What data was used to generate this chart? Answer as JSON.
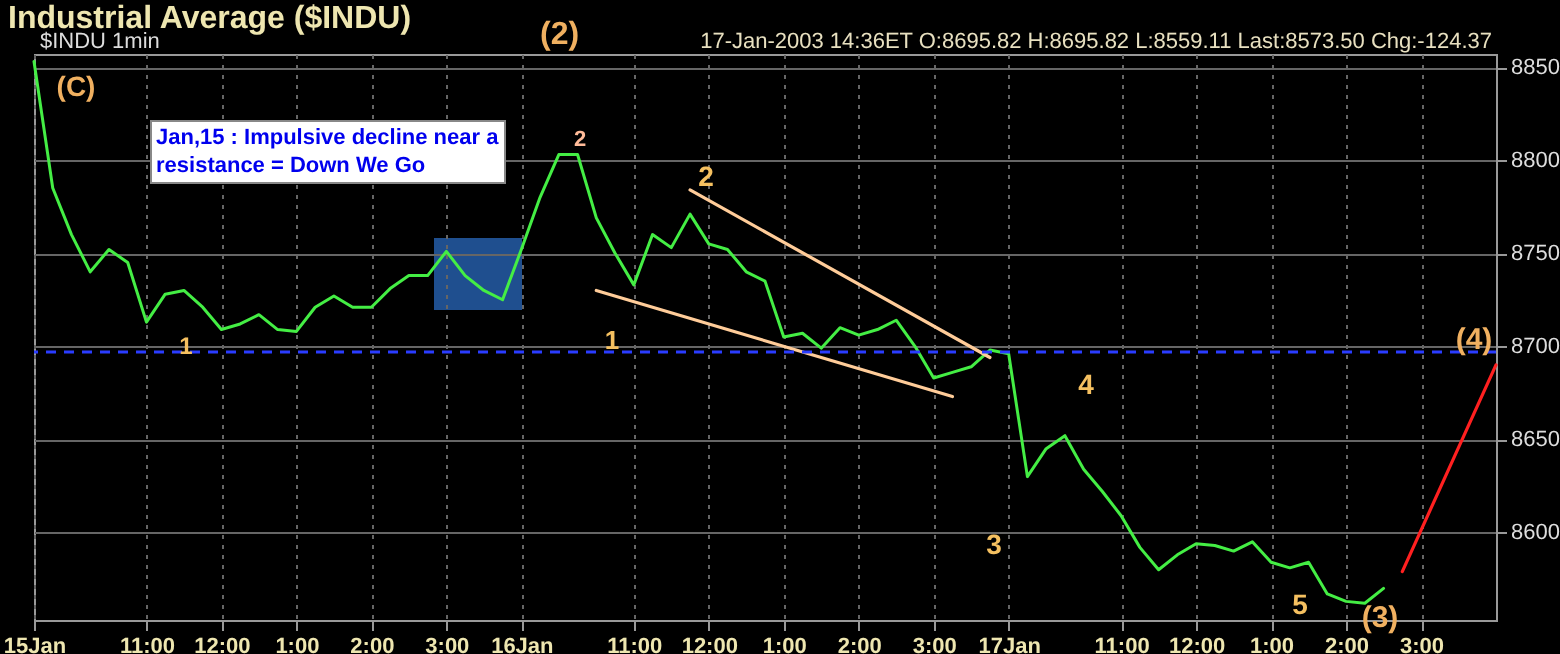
{
  "chart_data": {
    "type": "line",
    "title": "Industrial Average ($INDU)",
    "subtitle": "$INDU 1min",
    "annotations": [
      "17-Jan-2003 14:36ET O:8695.82 H:8695.82 L:8559.11 Last:8573.50 Chg:-124.37",
      "(2)",
      "Jan,15 : Impulsive decline near a resistance = Down We Go",
      "(C)",
      "1",
      "2",
      "1",
      "2",
      "3",
      "4",
      "5",
      "(3)",
      "(4)"
    ],
    "categories": [
      "15Jan",
      null,
      null,
      null,
      null,
      null,
      "11:00",
      null,
      null,
      null,
      "12:00",
      null,
      null,
      null,
      "1:00",
      null,
      null,
      null,
      "2:00",
      null,
      null,
      null,
      "3:00",
      null,
      null,
      null,
      "16Jan",
      null,
      null,
      null,
      null,
      null,
      "11:00",
      null,
      null,
      null,
      "12:00",
      null,
      null,
      null,
      "1:00",
      null,
      null,
      null,
      "2:00",
      null,
      null,
      null,
      "3:00",
      null,
      null,
      null,
      "17Jan",
      null,
      null,
      null,
      null,
      null,
      "11:00",
      null,
      null,
      null,
      "12:00",
      null,
      null,
      null,
      "1:00",
      null,
      null,
      null,
      "2:00",
      null,
      null,
      null,
      "3:00",
      null,
      null,
      null,
      null
    ],
    "ylim": [
      8553,
      8857
    ],
    "yticks": [
      8600,
      8650,
      8700,
      8750,
      8800,
      8850
    ],
    "grid": true,
    "marker": "none",
    "ref_lines": [
      {
        "axis": "y",
        "value": 8697,
        "color": "#2a3cff",
        "line_style": "dashed"
      }
    ],
    "series": [
      {
        "color": "#44ee44",
        "values": [
          8853,
          8785,
          8760,
          8740,
          8752,
          8745,
          8713,
          8728,
          8730,
          8721,
          8709,
          8712,
          8717,
          8709,
          8708,
          8721,
          8727,
          8721,
          8721,
          8731,
          8738,
          8738,
          8751,
          8738,
          8730,
          8725,
          8752,
          8780,
          8803,
          8803,
          8769,
          8750,
          8733,
          8760,
          8753,
          8771,
          8755,
          8752,
          8740,
          8735,
          8705,
          8707,
          8699,
          8710,
          8706,
          8709,
          8714,
          8700,
          8683,
          8686,
          8689,
          8698,
          8696,
          8630,
          8645,
          8652,
          8634,
          8622,
          8609,
          8592,
          8580,
          8588,
          8594,
          8593,
          8590,
          8595,
          8584,
          8581,
          8584,
          8567,
          8563,
          8562,
          8570,
          null,
          null,
          null,
          null,
          null,
          null
        ]
      },
      {
        "type": "line",
        "color": "#ffcc99",
        "values": [
          null,
          null,
          null,
          null,
          null,
          null,
          null,
          null,
          null,
          null,
          null,
          null,
          null,
          null,
          null,
          null,
          null,
          null,
          null,
          null,
          null,
          null,
          null,
          null,
          null,
          null,
          null,
          null,
          null,
          null,
          null,
          null,
          null,
          null,
          null,
          8784,
          null,
          null,
          null,
          null,
          null,
          null,
          null,
          null,
          null,
          null,
          null,
          null,
          null,
          null,
          null,
          8694,
          null,
          null,
          null,
          null,
          null,
          null,
          null,
          null,
          null,
          null,
          null,
          null,
          null,
          null,
          null,
          null,
          null,
          null,
          null,
          null,
          null,
          null,
          null,
          null,
          null,
          null,
          null
        ]
      },
      {
        "type": "line",
        "color": "#ffcc99",
        "values": [
          null,
          null,
          null,
          null,
          null,
          null,
          null,
          null,
          null,
          null,
          null,
          null,
          null,
          null,
          null,
          null,
          null,
          null,
          null,
          null,
          null,
          null,
          null,
          null,
          null,
          null,
          null,
          null,
          null,
          null,
          8730,
          null,
          null,
          null,
          null,
          null,
          null,
          null,
          null,
          null,
          null,
          null,
          null,
          null,
          null,
          null,
          null,
          null,
          null,
          8673,
          null,
          null,
          null,
          null,
          null,
          null,
          null,
          null,
          null,
          null,
          null,
          null,
          null,
          null,
          null,
          null,
          null,
          null,
          null,
          null,
          null,
          null,
          null,
          null,
          null,
          null,
          null,
          null,
          null
        ]
      },
      {
        "type": "line",
        "color": "#ff2020",
        "values": [
          null,
          null,
          null,
          null,
          null,
          null,
          null,
          null,
          null,
          null,
          null,
          null,
          null,
          null,
          null,
          null,
          null,
          null,
          null,
          null,
          null,
          null,
          null,
          null,
          null,
          null,
          null,
          null,
          null,
          null,
          null,
          null,
          null,
          null,
          null,
          null,
          null,
          null,
          null,
          null,
          null,
          null,
          null,
          null,
          null,
          null,
          null,
          null,
          null,
          null,
          null,
          null,
          null,
          null,
          null,
          null,
          null,
          null,
          null,
          null,
          null,
          null,
          null,
          null,
          null,
          null,
          null,
          null,
          null,
          null,
          null,
          null,
          null,
          8579,
          null,
          null,
          null,
          null,
          8690
        ]
      }
    ]
  }
}
